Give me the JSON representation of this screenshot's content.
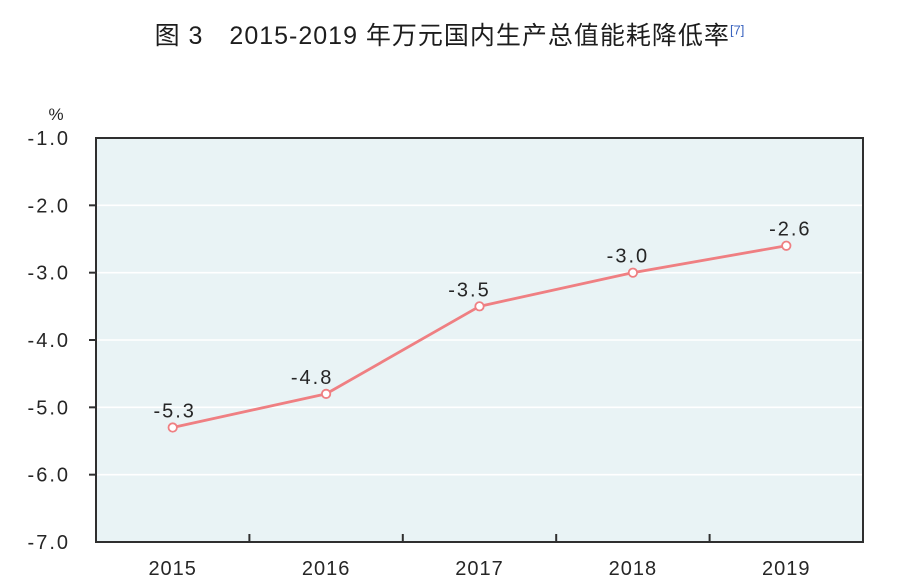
{
  "title": {
    "text": "图 3　2015-2019 年万元国内生产总值能耗降低率",
    "superscript": "[7]"
  },
  "colors": {
    "line": "#ef7f82",
    "marker_fill": "#ffffff",
    "plot_bg": "#e9f3f5",
    "gridline": "#ffffff",
    "axis": "#2f2f2f",
    "text": "#262626",
    "footnote": "#3b64c0"
  },
  "chart_data": {
    "type": "line",
    "title": "图 3　2015-2019 年万元国内生产总值能耗降低率[7]",
    "categories": [
      "2015",
      "2016",
      "2017",
      "2018",
      "2019"
    ],
    "values": [
      -5.3,
      -4.8,
      -3.5,
      -3.0,
      -2.6
    ],
    "data_labels": [
      "-5.3",
      "-4.8",
      "-3.5",
      "-3.0",
      "-2.6"
    ],
    "unit_label": "%",
    "xlabel": "",
    "ylabel": "%",
    "ylim": [
      -7.0,
      -1.0
    ],
    "yticks": [
      -1.0,
      -2.0,
      -3.0,
      -4.0,
      -5.0,
      -6.0,
      -7.0
    ],
    "ytick_labels": [
      "-1.0",
      "-2.0",
      "-3.0",
      "-4.0",
      "-5.0",
      "-6.0",
      "-7.0"
    ],
    "grid": true,
    "legend_position": "none",
    "marker": "circle-open",
    "label_dx": [
      2,
      -14,
      -10,
      -5,
      4
    ]
  }
}
